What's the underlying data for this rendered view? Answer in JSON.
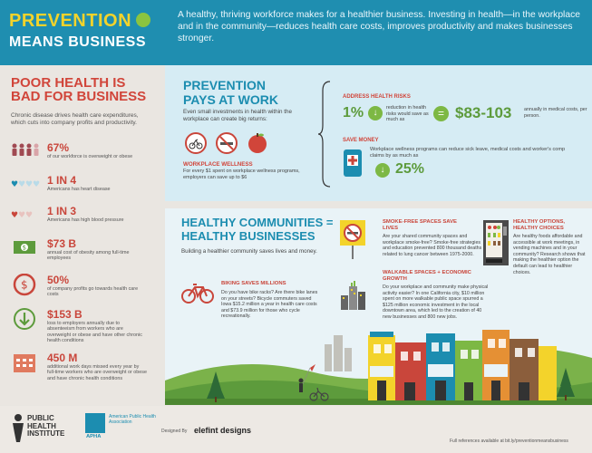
{
  "header": {
    "title_line1": "PREVENTION",
    "title_line2": "MEANS BUSINESS",
    "description": "A healthy, thriving workforce makes for a healthier business. Investing in health—in the workplace and in the community—reduces health care costs, improves productivity and makes businesses stronger."
  },
  "left": {
    "title": "POOR HEALTH IS BAD FOR BUSINESS",
    "description": "Chronic disease drives health care expenditures, which cuts into company profits and productivity.",
    "stats": [
      {
        "value": "67%",
        "text": "of our workforce is overweight or obese"
      },
      {
        "value": "1 IN 4",
        "text": "Americans has heart disease"
      },
      {
        "value": "1 IN 3",
        "text": "Americans has high blood pressure"
      },
      {
        "value": "$73 B",
        "text": "annual cost of obesity among full-time employees"
      },
      {
        "value": "50%",
        "text": "of company profits go towards health care costs"
      },
      {
        "value": "$153 B",
        "text": "loss to employers annually due to absenteeism from workers who are overweight or obese and have other chronic health conditions"
      },
      {
        "value": "450 M",
        "text": "additional work days missed every year by full-time workers who are overweight or obese and have chronic health conditions"
      }
    ]
  },
  "work": {
    "title": "PREVENTION PAYS AT WORK",
    "description": "Even small investments in health within the workplace can create big returns:",
    "wellness_label": "WORKPLACE WELLNESS",
    "wellness_text": "For every $1 spent on workplace wellness programs, employers can save up to $6",
    "address_label": "ADDRESS HEALTH RISKS",
    "risk_value": "1%",
    "risk_text": "reduction in health risks would save as much as",
    "savings_value": "$83-103",
    "savings_text": "annually in medical costs, per person.",
    "save_label": "SAVE MONEY",
    "save_text": "Workplace wellness programs can reduce sick leave, medical costs and worker's comp claims by as much as",
    "save_value": "25%"
  },
  "community": {
    "title": "HEALTHY COMMUNITIES = HEALTHY BUSINESSES",
    "description": "Building a healthier community saves lives and money.",
    "smoke_title": "SMOKE-FREE SPACES SAVE LIVES",
    "smoke_text": "Are your shared community spaces and workplace smoke-free? Smoke-free strategies and education prevented 800 thousand deaths related to lung cancer between 1975-2000.",
    "options_title": "HEALTHY OPTIONS, HEALTHY CHOICES",
    "options_text": "Are healthy foods affordable and accessible at work meetings, in vending machines and in your community? Research shows that making the healthier option the default can lead to healthier choices.",
    "bike_title": "BIKING SAVES MILLIONS",
    "bike_text": "Do you have bike racks? Are there bike lanes on your streets? Bicycle commuters saved Iowa $15.2 million a year in health care costs and $73.9 million for those who cycle recreationally.",
    "walk_title": "WALKABLE SPACES + ECONOMIC GROWTH",
    "walk_text": "Do your workplace and community make physical activity easier? In one California city, $10 million spent on more walkable public space spurred a $125 million economic investment in the local downtown area, which led to the creation of 40 new businesses and 800 new jobs."
  },
  "footer": {
    "phi": "PUBLIC HEALTH INSTITUTE",
    "apha": "American Public Health Association",
    "apha_abbr": "APHA",
    "designed_by": "Designed By",
    "designer": "elefint designs",
    "refs": "Full references available at bit.ly/preventionmeansbusiness"
  },
  "colors": {
    "header_blue": "#1f8eb0",
    "title_yellow": "#f3d32b",
    "accent_red": "#d1453a",
    "accent_green": "#5d9b3c"
  }
}
